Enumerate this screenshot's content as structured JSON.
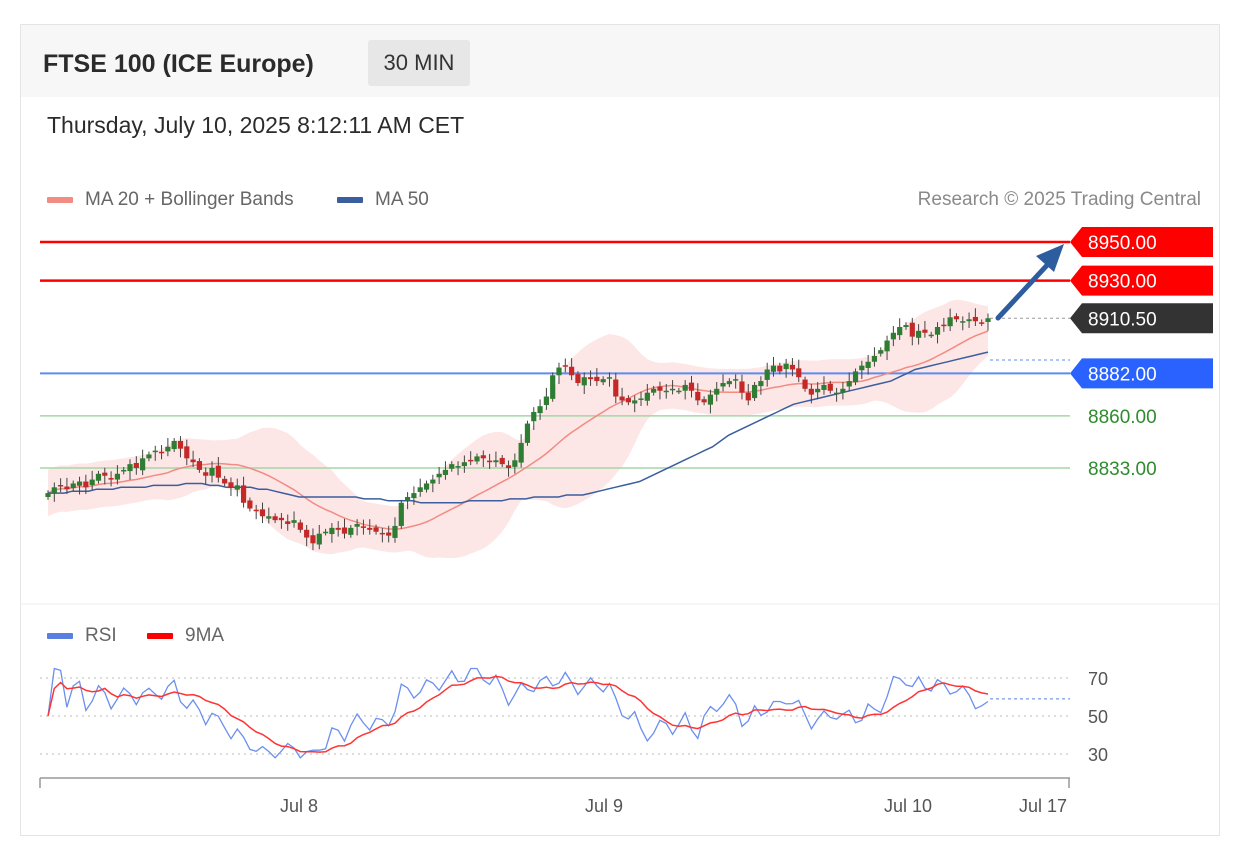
{
  "header": {
    "title": "FTSE 100 (ICE Europe)",
    "interval": "30 MIN"
  },
  "timestamp": "Thursday, July 10, 2025 8:12:11 AM CET",
  "legend": {
    "ma20": "MA 20 + Bollinger Bands",
    "ma50": "MA 50",
    "rsi": "RSI",
    "rsi_ma": "9MA"
  },
  "credit": "Research © 2025 Trading Central",
  "colors": {
    "bull": "#2e7d32",
    "bear": "#c62828",
    "ma20": "#f28b82",
    "ma50": "#3b5e9e",
    "band": "#fde2e2",
    "resistance": "#ff0000",
    "support": "#4caf50",
    "pivot": "#2962ff",
    "last": "#333333",
    "arrow": "#2e5d9f"
  },
  "chart_data": [
    {
      "type": "candlestick",
      "title": "FTSE 100 (ICE Europe)",
      "timeframe": "30 MIN",
      "ylim": [
        8802,
        8965
      ],
      "x_tick_labels": [
        "Jul 8",
        "Jul 9",
        "Jul 10",
        "Jul 17"
      ],
      "levels": [
        {
          "label": "8950.00",
          "value": 8950,
          "kind": "resistance"
        },
        {
          "label": "8930.00",
          "value": 8930,
          "kind": "resistance"
        },
        {
          "label": "8910.50",
          "value": 8910.5,
          "kind": "last"
        },
        {
          "label": "8882.00",
          "value": 8882,
          "kind": "pivot"
        },
        {
          "label": "8860.00",
          "value": 8860,
          "kind": "support"
        },
        {
          "label": "8833.00",
          "value": 8833,
          "kind": "support"
        }
      ],
      "close_series": [
        8820,
        8823,
        8824,
        8822,
        8825,
        8826,
        8823,
        8827,
        8830,
        8829,
        8827,
        8830,
        8832,
        8835,
        8833,
        8838,
        8840,
        8842,
        8841,
        8844,
        8847,
        8843,
        8838,
        8836,
        8832,
        8829,
        8833,
        8828,
        8825,
        8823,
        8824,
        8815,
        8812,
        8811,
        8808,
        8808,
        8806,
        8806,
        8804,
        8806,
        8801,
        8797,
        8794,
        8799,
        8800,
        8802,
        8801,
        8799,
        8802,
        8804,
        8802,
        8801,
        8800,
        8799,
        8798,
        8803,
        8815,
        8818,
        8820,
        8823,
        8825,
        8827,
        8830,
        8832,
        8835,
        8834,
        8836,
        8837,
        8839,
        8838,
        8836,
        8837,
        8835,
        8833,
        8837,
        8846,
        8856,
        8862,
        8865,
        8870,
        8881,
        8885,
        8886,
        8881,
        8877,
        8880,
        8879,
        8878,
        8879,
        8880,
        8870,
        8868,
        8867,
        8868,
        8869,
        8872,
        8874,
        8873,
        8873,
        8874,
        8873,
        8876,
        8873,
        8868,
        8867,
        8871,
        8874,
        8877,
        8878,
        8879,
        8872,
        8868,
        8876,
        8878,
        8884,
        8886,
        8883,
        8887,
        8884,
        8880,
        8874,
        8871,
        8874,
        8876,
        8873,
        8872,
        8874,
        8878,
        8883,
        8886,
        8888,
        8891,
        8894,
        8899,
        8903,
        8906,
        8907,
        8901,
        8904,
        8903,
        8902,
        8906,
        8907,
        8911,
        8910,
        8909,
        8910,
        8909,
        8908,
        8910.5
      ],
      "ma50_series": [
        8820,
        8820,
        8820,
        8821,
        8821,
        8821,
        8822,
        8822,
        8822,
        8823,
        8823,
        8823,
        8823,
        8824,
        8824,
        8824,
        8824,
        8825,
        8825,
        8825,
        8824,
        8824,
        8823,
        8823,
        8823,
        8823,
        8822,
        8822,
        8821,
        8820,
        8819,
        8818,
        8818,
        8818,
        8818,
        8818,
        8818,
        8818,
        8818,
        8817,
        8817,
        8817,
        8816,
        8816,
        8816,
        8816,
        8815,
        8815,
        8815,
        8815,
        8815,
        8815,
        8816,
        8816,
        8816,
        8816,
        8816,
        8817,
        8817,
        8817,
        8818,
        8818,
        8818,
        8818,
        8819,
        8819,
        8819,
        8820,
        8821,
        8822,
        8823,
        8824,
        8825,
        8826,
        8828,
        8830,
        8832,
        8834,
        8836,
        8838,
        8840,
        8842,
        8844,
        8847,
        8850,
        8852,
        8854,
        8856,
        8858,
        8860,
        8862,
        8864,
        8866,
        8867,
        8868,
        8869,
        8870,
        8871,
        8872,
        8873,
        8874,
        8875,
        8876,
        8877,
        8878,
        8880,
        8882,
        8884,
        8885,
        8886,
        8887,
        8888,
        8889,
        8890,
        8891,
        8892,
        8893
      ],
      "rsi": {
        "ylim": [
          20,
          80
        ],
        "tick_labels": [
          "70",
          "50",
          "30"
        ],
        "last": 59
      }
    }
  ]
}
